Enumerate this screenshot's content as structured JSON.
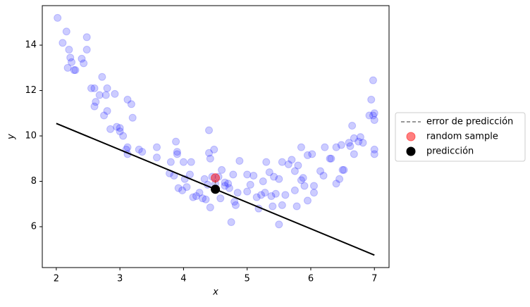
{
  "chart_data": {
    "type": "scatter",
    "xlabel": "x",
    "ylabel": "y",
    "xlim": [
      1.78,
      7.23
    ],
    "ylim": [
      4.2,
      15.74
    ],
    "xticks": [
      2,
      3,
      4,
      5,
      6,
      7
    ],
    "yticks": [
      6,
      8,
      10,
      12,
      14
    ],
    "grid": false,
    "legend": "outside right",
    "color": "#0000ff",
    "x": [
      2.02,
      2.1,
      2.16,
      2.18,
      2.2,
      2.22,
      2.24,
      2.28,
      2.3,
      2.4,
      2.43,
      2.48,
      2.48,
      2.55,
      2.6,
      2.6,
      2.62,
      2.68,
      2.72,
      2.75,
      2.78,
      2.8,
      2.8,
      2.85,
      2.92,
      2.95,
      3.0,
      3.0,
      3.05,
      3.1,
      3.12,
      3.12,
      3.12,
      3.18,
      3.2,
      3.3,
      3.35,
      3.58,
      3.58,
      3.78,
      3.8,
      3.85,
      3.88,
      3.9,
      3.9,
      3.92,
      3.98,
      4.0,
      4.02,
      4.05,
      4.1,
      4.12,
      4.15,
      4.2,
      4.25,
      4.3,
      4.33,
      4.35,
      4.38,
      4.4,
      4.4,
      4.42,
      4.42,
      4.45,
      4.48,
      4.5,
      4.55,
      4.58,
      4.6,
      4.65,
      4.65,
      4.7,
      4.72,
      4.75,
      4.78,
      4.8,
      4.82,
      4.85,
      4.88,
      5.0,
      5.0,
      5.05,
      5.1,
      5.15,
      5.18,
      5.22,
      5.25,
      5.28,
      5.3,
      5.35,
      5.38,
      5.4,
      5.42,
      5.45,
      5.5,
      5.5,
      5.55,
      5.55,
      5.6,
      5.65,
      5.7,
      5.75,
      5.75,
      5.78,
      5.8,
      5.85,
      5.85,
      5.88,
      5.9,
      5.95,
      5.95,
      6.02,
      6.05,
      6.05,
      6.15,
      6.2,
      6.22,
      6.3,
      6.32,
      6.4,
      6.4,
      6.45,
      6.48,
      6.5,
      6.52,
      6.6,
      6.62,
      6.65,
      6.68,
      6.68,
      6.75,
      6.78,
      6.82,
      6.92,
      6.95,
      6.98,
      6.98,
      7.0,
      7.0,
      7.0,
      7.0
    ],
    "values": [
      15.2,
      14.1,
      14.6,
      13.0,
      13.8,
      13.45,
      13.25,
      12.9,
      12.9,
      13.4,
      13.2,
      14.35,
      13.8,
      12.1,
      12.1,
      11.3,
      11.5,
      11.8,
      12.6,
      10.9,
      11.8,
      12.1,
      11.1,
      10.3,
      11.85,
      10.4,
      10.35,
      10.2,
      10.0,
      9.4,
      9.2,
      11.6,
      9.5,
      11.4,
      10.8,
      9.4,
      9.3,
      9.5,
      9.05,
      8.35,
      8.85,
      8.25,
      9.75,
      9.3,
      9.2,
      7.7,
      7.6,
      8.85,
      8.1,
      7.75,
      8.3,
      8.85,
      7.3,
      7.35,
      7.5,
      7.25,
      8.1,
      7.2,
      7.85,
      10.25,
      9.25,
      6.85,
      9.0,
      8.2,
      9.4,
      7.9,
      8.2,
      7.25,
      8.5,
      7.8,
      7.95,
      7.9,
      7.7,
      6.2,
      8.3,
      7.1,
      6.95,
      7.5,
      8.9,
      7.55,
      8.3,
      7.85,
      8.25,
      7.3,
      6.8,
      7.4,
      8.0,
      7.5,
      8.85,
      8.4,
      7.35,
      6.9,
      8.2,
      7.45,
      8.1,
      6.1,
      6.95,
      8.85,
      7.4,
      8.75,
      8.95,
      7.6,
      8.45,
      6.9,
      8.7,
      8.05,
      9.5,
      8.15,
      7.8,
      9.15,
      7.15,
      9.2,
      7.5,
      7.8,
      8.45,
      8.25,
      9.5,
      9.0,
      9.0,
      9.5,
      7.9,
      8.1,
      9.6,
      8.5,
      8.5,
      9.7,
      9.55,
      10.45,
      9.9,
      9.2,
      9.75,
      9.95,
      9.7,
      10.9,
      11.6,
      10.9,
      12.45,
      10.7,
      9.2,
      11.0,
      9.4
    ],
    "fit_line": {
      "color": "#000000",
      "x": [
        2,
        7
      ],
      "values": [
        10.55,
        4.75
      ]
    },
    "series": [
      {
        "name": "error de predicción",
        "color": "#777777",
        "style": "dashed-line",
        "x": [
          4.5,
          4.5
        ],
        "values": [
          7.65,
          8.15
        ]
      },
      {
        "name": "random sample",
        "color": "#ff0000",
        "style": "dot",
        "x": [
          4.5
        ],
        "values": [
          8.15
        ]
      },
      {
        "name": "predicción",
        "color": "#000000",
        "style": "dot",
        "x": [
          4.5
        ],
        "values": [
          7.65
        ]
      }
    ]
  }
}
